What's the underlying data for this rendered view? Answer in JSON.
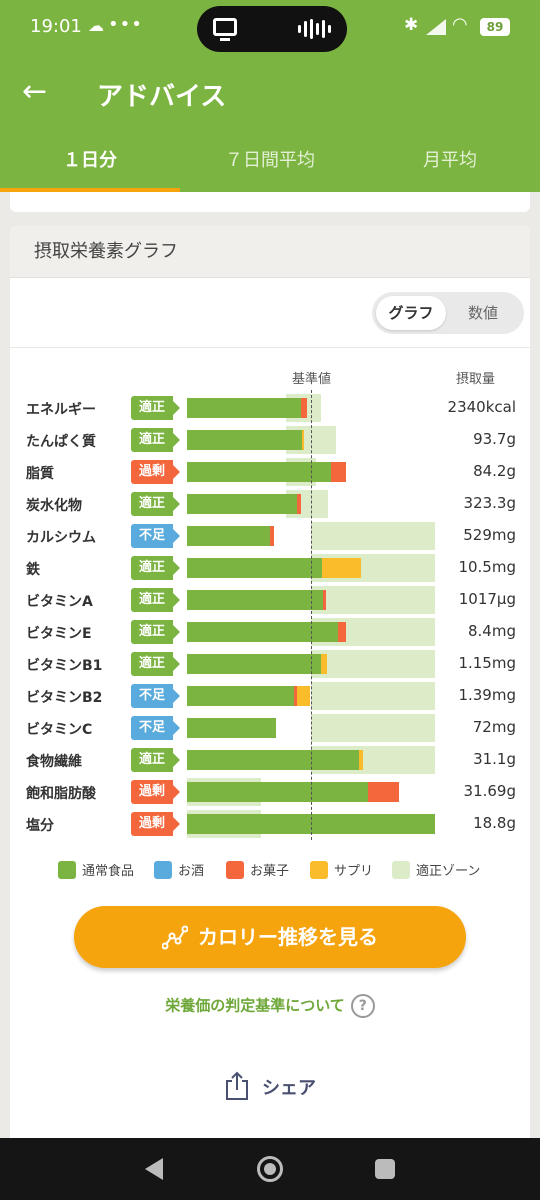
{
  "status_bar": {
    "time": "19:01",
    "dots": "•••",
    "battery": "89"
  },
  "app_bar": {
    "title": "アドバイス"
  },
  "tabs": [
    {
      "label": "１日分",
      "active": true
    },
    {
      "label": "７日間平均",
      "active": false
    },
    {
      "label": "月平均",
      "active": false
    }
  ],
  "card": {
    "title": "摂取栄養素グラフ",
    "toggle": {
      "graph_label": "グラフ",
      "number_label": "数値",
      "selected": "グラフ"
    }
  },
  "chart_data": {
    "type": "bar",
    "stacked": true,
    "orientation": "horizontal",
    "reference_label": "基準値",
    "intake_label": "摂取量",
    "reference_position_pct": 50,
    "rows": [
      {
        "label": "エネルギー",
        "status": "適正",
        "status_type": "ok",
        "value": "2340kcal",
        "zone": [
          40,
          54
        ],
        "segments": [
          {
            "type": "normal",
            "pct": 46
          },
          {
            "type": "snack",
            "pct": 2.5
          }
        ]
      },
      {
        "label": "たんぱく質",
        "status": "適正",
        "status_type": "ok",
        "value": "93.7g",
        "zone": [
          40,
          60
        ],
        "segments": [
          {
            "type": "normal",
            "pct": 46.5
          },
          {
            "type": "supplement",
            "pct": 0.8
          }
        ]
      },
      {
        "label": "脂質",
        "status": "過剰",
        "status_type": "over",
        "value": "84.2g",
        "zone": [
          40,
          52
        ],
        "segments": [
          {
            "type": "normal",
            "pct": 58
          },
          {
            "type": "snack",
            "pct": 6
          }
        ]
      },
      {
        "label": "炭水化物",
        "status": "適正",
        "status_type": "ok",
        "value": "323.3g",
        "zone": [
          40,
          57
        ],
        "segments": [
          {
            "type": "normal",
            "pct": 44.5
          },
          {
            "type": "snack",
            "pct": 1.5
          }
        ]
      },
      {
        "label": "カルシウム",
        "status": "不足",
        "status_type": "low",
        "value": "529mg",
        "zone": [
          50,
          100
        ],
        "segments": [
          {
            "type": "normal",
            "pct": 33.5
          },
          {
            "type": "snack",
            "pct": 1.5
          }
        ]
      },
      {
        "label": "鉄",
        "status": "適正",
        "status_type": "ok",
        "value": "10.5mg",
        "zone": [
          50,
          100
        ],
        "segments": [
          {
            "type": "normal",
            "pct": 54.5
          },
          {
            "type": "supplement",
            "pct": 15.5
          }
        ]
      },
      {
        "label": "ビタミンA",
        "status": "適正",
        "status_type": "ok",
        "value": "1017µg",
        "zone": [
          50,
          100
        ],
        "segments": [
          {
            "type": "normal",
            "pct": 55
          },
          {
            "type": "snack",
            "pct": 1
          }
        ]
      },
      {
        "label": "ビタミンE",
        "status": "適正",
        "status_type": "ok",
        "value": "8.4mg",
        "zone": [
          50,
          100
        ],
        "segments": [
          {
            "type": "normal",
            "pct": 61
          },
          {
            "type": "snack",
            "pct": 3
          }
        ]
      },
      {
        "label": "ビタミンB1",
        "status": "適正",
        "status_type": "ok",
        "value": "1.15mg",
        "zone": [
          50,
          100
        ],
        "segments": [
          {
            "type": "normal",
            "pct": 54
          },
          {
            "type": "supplement",
            "pct": 2.5
          }
        ]
      },
      {
        "label": "ビタミンB2",
        "status": "不足",
        "status_type": "low",
        "value": "1.39mg",
        "zone": [
          50,
          100
        ],
        "segments": [
          {
            "type": "normal",
            "pct": 43
          },
          {
            "type": "snack",
            "pct": 1.5
          },
          {
            "type": "supplement",
            "pct": 5
          }
        ]
      },
      {
        "label": "ビタミンC",
        "status": "不足",
        "status_type": "low",
        "value": "72mg",
        "zone": [
          50,
          100
        ],
        "segments": [
          {
            "type": "normal",
            "pct": 36
          }
        ]
      },
      {
        "label": "食物繊維",
        "status": "適正",
        "status_type": "ok",
        "value": "31.1g",
        "zone": [
          50,
          100
        ],
        "segments": [
          {
            "type": "normal",
            "pct": 69.5
          },
          {
            "type": "supplement",
            "pct": 1.5
          }
        ]
      },
      {
        "label": "飽和脂肪酸",
        "status": "過剰",
        "status_type": "over",
        "value": "31.69g",
        "zone": [
          0,
          30
        ],
        "segments": [
          {
            "type": "normal",
            "pct": 73
          },
          {
            "type": "snack",
            "pct": 12.5
          }
        ]
      },
      {
        "label": "塩分",
        "status": "過剰",
        "status_type": "over",
        "value": "18.8g",
        "zone": [
          0,
          30
        ],
        "segments": [
          {
            "type": "normal",
            "pct": 100
          }
        ]
      }
    ]
  },
  "legend": [
    {
      "label": "通常食品",
      "color": "#7bb440"
    },
    {
      "label": "お酒",
      "color": "#5aabdd"
    },
    {
      "label": "お菓子",
      "color": "#f4663c"
    },
    {
      "label": "サプリ",
      "color": "#fbbc2c"
    },
    {
      "label": "適正ゾーン",
      "color": "#dcecc9"
    }
  ],
  "colors": {
    "normal": "#7bb440",
    "alcohol": "#5aabdd",
    "snack": "#f4663c",
    "supplement": "#fbbc2c",
    "zone": "#dcecc9",
    "accent": "#f6a40e"
  },
  "cta": {
    "label": "カロリー推移を見る"
  },
  "criteria_link": {
    "label": "栄養価の判定基準について",
    "help": "?"
  },
  "share": {
    "label": "シェア"
  }
}
